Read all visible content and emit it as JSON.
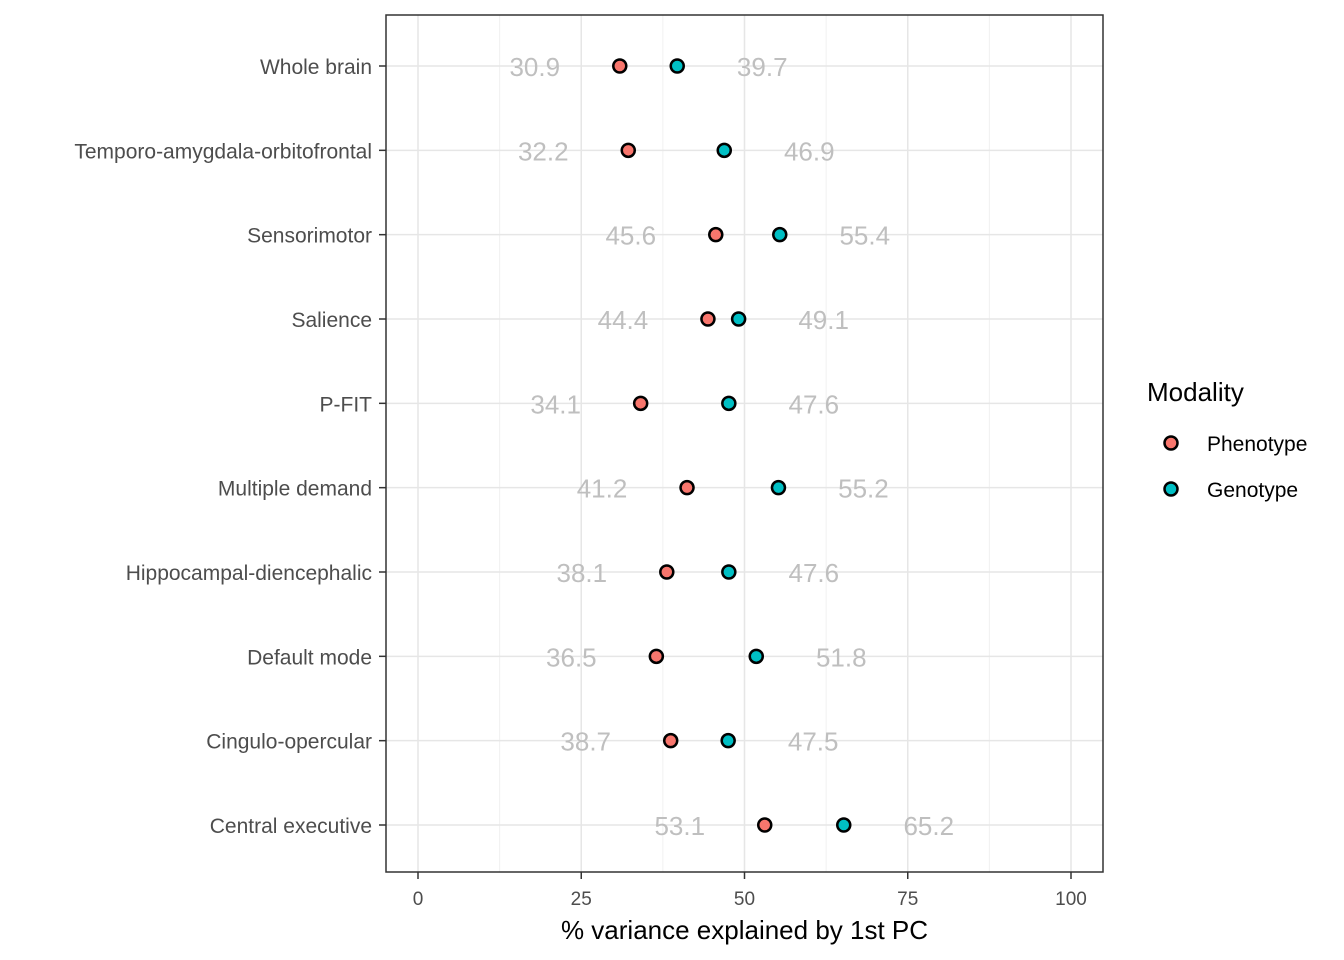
{
  "chart_data": {
    "type": "scatter",
    "xlabel": "% variance explained by 1st PC",
    "ylabel": "",
    "xlim": [
      -5,
      105
    ],
    "xticks": [
      0,
      25,
      50,
      75,
      100
    ],
    "xtick_labels": [
      "0",
      "25",
      "50",
      "75",
      "100"
    ],
    "grid": true,
    "legend_position": "right",
    "categories": [
      "Whole brain",
      "Temporo-amygdala-orbitofrontal",
      "Sensorimotor",
      "Salience",
      "P-FIT",
      "Multiple demand",
      "Hippocampal-diencephalic",
      "Default mode",
      "Cingulo-opercular",
      "Central executive"
    ],
    "series": [
      {
        "name": "Phenotype",
        "color": "#F8766D",
        "values": [
          30.9,
          32.2,
          45.6,
          44.4,
          34.1,
          41.2,
          38.1,
          36.5,
          38.7,
          53.1
        ],
        "labels": [
          "30.9",
          "32.2",
          "45.6",
          "44.4",
          "34.1",
          "41.2",
          "38.1",
          "36.5",
          "38.7",
          "53.1"
        ]
      },
      {
        "name": "Genotype",
        "color": "#00BFC4",
        "values": [
          39.7,
          46.9,
          55.4,
          49.1,
          47.6,
          55.2,
          47.6,
          51.8,
          47.5,
          65.2
        ],
        "labels": [
          "39.7",
          "46.9",
          "55.4",
          "49.1",
          "47.6",
          "55.2",
          "47.6",
          "51.8",
          "47.5",
          "65.2"
        ]
      }
    ],
    "legend": {
      "title": "Modality",
      "entries": [
        "Phenotype",
        "Genotype"
      ]
    }
  }
}
